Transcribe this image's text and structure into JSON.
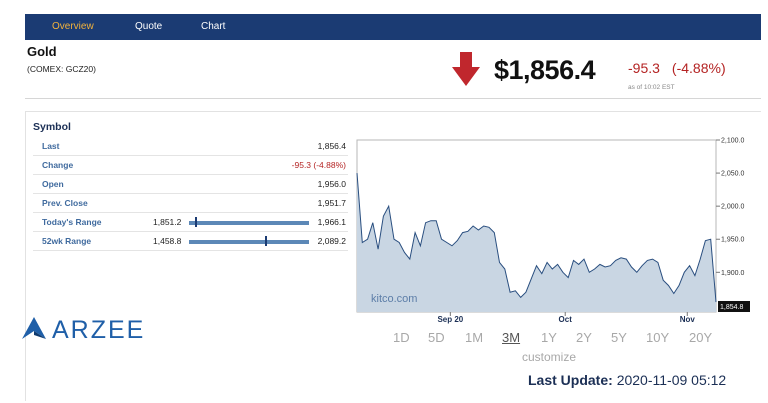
{
  "nav": {
    "tabs": [
      {
        "label": "Overview"
      },
      {
        "label": "Quote"
      },
      {
        "label": "Chart"
      }
    ]
  },
  "header": {
    "name": "Gold",
    "exchange": "(COMEX: GCZ20)",
    "price": "$1,856.4",
    "change": "-95.3",
    "change_pct": "(-4.88%)",
    "as_of": "as of 10:02 EST",
    "direction_icon": "down-arrow-icon"
  },
  "table": {
    "title": "Symbol",
    "rows": [
      {
        "label": "Last",
        "value": "1,856.4"
      },
      {
        "label": "Change",
        "value": "-95.3 (-4.88%)"
      },
      {
        "label": "Open",
        "value": "1,956.0"
      },
      {
        "label": "Prev. Close",
        "value": "1,951.7"
      },
      {
        "label": "Today's Range",
        "low": "1,851.2",
        "high": "1,966.1"
      },
      {
        "label": "52wk Range",
        "low": "1,458.8",
        "high": "2,089.2"
      }
    ]
  },
  "ranges": {
    "today_marker_fraction": 0.05,
    "wk52_marker_fraction": 0.63
  },
  "chart_data": {
    "type": "area",
    "ylim": [
      1840,
      2100
    ],
    "y_ticks": [
      "2,100.0",
      "2,050.0",
      "2,000.0",
      "1,950.0",
      "1,900.0"
    ],
    "x_ticks": [
      "Sep 20",
      "Oct",
      "Nov"
    ],
    "current_label": "1,854.8",
    "watermark": "kitco.com",
    "series": [
      {
        "values": [
          2050,
          1945,
          1950,
          1975,
          1935,
          1985,
          2000,
          1950,
          1945,
          1930,
          1920,
          1960,
          1940,
          1975,
          1978,
          1978,
          1950,
          1945,
          1940,
          1948,
          1960,
          1962,
          1970,
          1964,
          1970,
          1968,
          1960,
          1915,
          1905,
          1870,
          1872,
          1862,
          1870,
          1890,
          1910,
          1898,
          1915,
          1905,
          1912,
          1900,
          1892,
          1918,
          1912,
          1920,
          1900,
          1905,
          1912,
          1908,
          1910,
          1918,
          1922,
          1920,
          1908,
          1900,
          1910,
          1918,
          1920,
          1915,
          1888,
          1880,
          1868,
          1880,
          1900,
          1910,
          1895,
          1920,
          1948,
          1950,
          1855
        ]
      }
    ]
  },
  "range_buttons": [
    "1D",
    "5D",
    "1M",
    "3M",
    "1Y",
    "2Y",
    "5Y",
    "10Y",
    "20Y"
  ],
  "active_range": "3M",
  "customize_label": "customize",
  "last_update": {
    "label": "Last Update:",
    "value": "2020-11-09 05:12"
  },
  "logo": {
    "text": "ARZEE"
  },
  "colors": {
    "nav_bg": "#1b3b73",
    "nav_active": "#f2b23c",
    "negative": "#b42323",
    "area_fill": "#c9d6e3",
    "area_stroke": "#294e7f"
  }
}
